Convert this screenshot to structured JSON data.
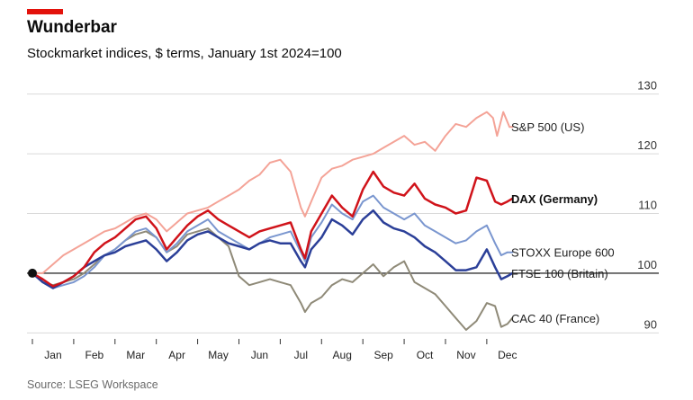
{
  "header": {
    "title": "Wunderbar",
    "subtitle": "Stockmarket indices, $ terms, January 1st 2024=100"
  },
  "footer": {
    "source": "Source: LSEG Workspace"
  },
  "colors": {
    "accent": "#e3120b",
    "grid": "#d9d9d9",
    "baseline": "#333333"
  },
  "chart_data": {
    "type": "line",
    "title": "Wunderbar",
    "subtitle": "Stockmarket indices, $ terms, January 1st 2024=100",
    "xlabel": "",
    "ylabel": "",
    "x_unit": "2024 month (1 = January 1st)",
    "xlim": [
      1,
      12.7
    ],
    "ylim": [
      89,
      131
    ],
    "yticks": [
      90,
      100,
      110,
      120,
      130
    ],
    "baseline": 100,
    "grid": true,
    "legend": "direct labels at right end of lines",
    "month_labels": [
      "Jan",
      "Feb",
      "Mar",
      "Apr",
      "May",
      "Jun",
      "Jul",
      "Aug",
      "Sep",
      "Oct",
      "Nov",
      "Dec"
    ],
    "series": [
      {
        "name": "S&P 500 (US)",
        "color": "#f4a397",
        "width": 2,
        "bold": false,
        "points": [
          [
            1.0,
            100
          ],
          [
            1.25,
            100
          ],
          [
            1.5,
            101.5
          ],
          [
            1.75,
            103
          ],
          [
            2.0,
            104
          ],
          [
            2.25,
            105
          ],
          [
            2.5,
            106
          ],
          [
            2.75,
            107
          ],
          [
            3.0,
            107.5
          ],
          [
            3.25,
            108.5
          ],
          [
            3.5,
            109.5
          ],
          [
            3.75,
            110
          ],
          [
            4.0,
            109
          ],
          [
            4.25,
            107
          ],
          [
            4.5,
            108.5
          ],
          [
            4.75,
            110
          ],
          [
            5.0,
            110.5
          ],
          [
            5.25,
            111
          ],
          [
            5.5,
            112
          ],
          [
            5.75,
            113
          ],
          [
            6.0,
            114
          ],
          [
            6.25,
            115.5
          ],
          [
            6.5,
            116.5
          ],
          [
            6.75,
            118.5
          ],
          [
            7.0,
            119
          ],
          [
            7.25,
            117
          ],
          [
            7.5,
            111
          ],
          [
            7.6,
            109.5
          ],
          [
            7.75,
            112
          ],
          [
            8.0,
            116
          ],
          [
            8.25,
            117.5
          ],
          [
            8.5,
            118
          ],
          [
            8.75,
            119
          ],
          [
            9.0,
            119.5
          ],
          [
            9.25,
            120
          ],
          [
            9.5,
            121
          ],
          [
            9.75,
            122
          ],
          [
            10.0,
            123
          ],
          [
            10.25,
            121.5
          ],
          [
            10.5,
            122
          ],
          [
            10.75,
            120.5
          ],
          [
            11.0,
            123
          ],
          [
            11.25,
            125
          ],
          [
            11.5,
            124.5
          ],
          [
            11.75,
            126
          ],
          [
            12.0,
            127
          ],
          [
            12.15,
            126
          ],
          [
            12.25,
            123
          ],
          [
            12.4,
            127
          ],
          [
            12.55,
            124.5
          ],
          [
            12.62,
            124.5
          ]
        ]
      },
      {
        "name": "DAX (Germany)",
        "color": "#d0131a",
        "width": 2.5,
        "bold": true,
        "points": [
          [
            1.0,
            100
          ],
          [
            1.25,
            99
          ],
          [
            1.5,
            97.8
          ],
          [
            1.75,
            98.5
          ],
          [
            2.0,
            99.5
          ],
          [
            2.25,
            101
          ],
          [
            2.5,
            103.5
          ],
          [
            2.75,
            105
          ],
          [
            3.0,
            106
          ],
          [
            3.25,
            107.5
          ],
          [
            3.5,
            109
          ],
          [
            3.75,
            109.5
          ],
          [
            4.0,
            107.5
          ],
          [
            4.25,
            104
          ],
          [
            4.5,
            106
          ],
          [
            4.75,
            108
          ],
          [
            5.0,
            109.5
          ],
          [
            5.25,
            110.5
          ],
          [
            5.5,
            109
          ],
          [
            5.75,
            108
          ],
          [
            6.0,
            107
          ],
          [
            6.25,
            106
          ],
          [
            6.5,
            107
          ],
          [
            6.75,
            107.5
          ],
          [
            7.0,
            108
          ],
          [
            7.25,
            108.5
          ],
          [
            7.5,
            104
          ],
          [
            7.6,
            102.5
          ],
          [
            7.75,
            107
          ],
          [
            8.0,
            110
          ],
          [
            8.25,
            113
          ],
          [
            8.5,
            111
          ],
          [
            8.75,
            109.5
          ],
          [
            9.0,
            114
          ],
          [
            9.25,
            117
          ],
          [
            9.5,
            114.5
          ],
          [
            9.75,
            113.5
          ],
          [
            10.0,
            113
          ],
          [
            10.25,
            115
          ],
          [
            10.5,
            112.5
          ],
          [
            10.75,
            111.5
          ],
          [
            11.0,
            111
          ],
          [
            11.25,
            110
          ],
          [
            11.5,
            110.5
          ],
          [
            11.75,
            116
          ],
          [
            12.0,
            115.5
          ],
          [
            12.2,
            112
          ],
          [
            12.35,
            111.5
          ],
          [
            12.5,
            112
          ],
          [
            12.62,
            112.5
          ]
        ]
      },
      {
        "name": "STOXX Europe 600",
        "color": "#7a96cf",
        "width": 2,
        "bold": false,
        "points": [
          [
            1.0,
            100
          ],
          [
            1.25,
            98.5
          ],
          [
            1.5,
            97.5
          ],
          [
            1.75,
            98
          ],
          [
            2.0,
            98.5
          ],
          [
            2.25,
            99.5
          ],
          [
            2.5,
            101
          ],
          [
            2.75,
            103
          ],
          [
            3.0,
            104
          ],
          [
            3.25,
            105.5
          ],
          [
            3.5,
            107
          ],
          [
            3.75,
            107.5
          ],
          [
            4.0,
            106
          ],
          [
            4.25,
            103.5
          ],
          [
            4.5,
            105
          ],
          [
            4.75,
            107
          ],
          [
            5.0,
            108
          ],
          [
            5.25,
            109
          ],
          [
            5.5,
            107
          ],
          [
            5.75,
            106
          ],
          [
            6.0,
            105
          ],
          [
            6.25,
            104
          ],
          [
            6.5,
            105
          ],
          [
            6.75,
            106
          ],
          [
            7.0,
            106.5
          ],
          [
            7.25,
            107
          ],
          [
            7.5,
            103.5
          ],
          [
            7.6,
            102
          ],
          [
            7.75,
            106
          ],
          [
            8.0,
            108.5
          ],
          [
            8.25,
            111.5
          ],
          [
            8.5,
            110
          ],
          [
            8.75,
            109
          ],
          [
            9.0,
            112
          ],
          [
            9.25,
            113
          ],
          [
            9.5,
            111
          ],
          [
            9.75,
            110
          ],
          [
            10.0,
            109
          ],
          [
            10.25,
            110
          ],
          [
            10.5,
            108
          ],
          [
            10.75,
            107
          ],
          [
            11.0,
            106
          ],
          [
            11.25,
            105
          ],
          [
            11.5,
            105.5
          ],
          [
            11.75,
            107
          ],
          [
            12.0,
            108
          ],
          [
            12.2,
            105
          ],
          [
            12.35,
            103
          ],
          [
            12.5,
            103.5
          ],
          [
            12.62,
            103.5
          ]
        ]
      },
      {
        "name": "FTSE 100 (Britain)",
        "color": "#2b3f98",
        "width": 2.5,
        "bold": false,
        "points": [
          [
            1.0,
            100
          ],
          [
            1.25,
            98.5
          ],
          [
            1.5,
            97.5
          ],
          [
            1.75,
            98.5
          ],
          [
            2.0,
            99.5
          ],
          [
            2.25,
            101
          ],
          [
            2.5,
            102
          ],
          [
            2.75,
            103
          ],
          [
            3.0,
            103.5
          ],
          [
            3.25,
            104.5
          ],
          [
            3.5,
            105
          ],
          [
            3.75,
            105.5
          ],
          [
            4.0,
            104
          ],
          [
            4.25,
            102
          ],
          [
            4.5,
            103.5
          ],
          [
            4.75,
            105.5
          ],
          [
            5.0,
            106.5
          ],
          [
            5.25,
            107
          ],
          [
            5.5,
            106
          ],
          [
            5.75,
            105
          ],
          [
            6.0,
            104.5
          ],
          [
            6.25,
            104
          ],
          [
            6.5,
            105
          ],
          [
            6.75,
            105.5
          ],
          [
            7.0,
            105
          ],
          [
            7.25,
            105
          ],
          [
            7.5,
            102
          ],
          [
            7.6,
            101
          ],
          [
            7.75,
            104
          ],
          [
            8.0,
            106
          ],
          [
            8.25,
            109
          ],
          [
            8.5,
            108
          ],
          [
            8.75,
            106.5
          ],
          [
            9.0,
            109
          ],
          [
            9.25,
            110.5
          ],
          [
            9.5,
            108.5
          ],
          [
            9.75,
            107.5
          ],
          [
            10.0,
            107
          ],
          [
            10.25,
            106
          ],
          [
            10.5,
            104.5
          ],
          [
            10.75,
            103.5
          ],
          [
            11.0,
            102
          ],
          [
            11.25,
            100.5
          ],
          [
            11.5,
            100.5
          ],
          [
            11.75,
            101
          ],
          [
            12.0,
            104
          ],
          [
            12.2,
            101
          ],
          [
            12.35,
            99
          ],
          [
            12.5,
            99.5
          ],
          [
            12.62,
            100
          ]
        ]
      },
      {
        "name": "CAC 40 (France)",
        "color": "#8f8a78",
        "width": 2,
        "bold": false,
        "points": [
          [
            1.0,
            100
          ],
          [
            1.25,
            98.5
          ],
          [
            1.5,
            98
          ],
          [
            1.75,
            98.5
          ],
          [
            2.0,
            99
          ],
          [
            2.25,
            100
          ],
          [
            2.5,
            101.5
          ],
          [
            2.75,
            103
          ],
          [
            3.0,
            104
          ],
          [
            3.25,
            105.5
          ],
          [
            3.5,
            106.5
          ],
          [
            3.75,
            107
          ],
          [
            4.0,
            106
          ],
          [
            4.25,
            103.5
          ],
          [
            4.5,
            104.5
          ],
          [
            4.75,
            106.5
          ],
          [
            5.0,
            107
          ],
          [
            5.25,
            107.5
          ],
          [
            5.5,
            106
          ],
          [
            5.75,
            104.5
          ],
          [
            6.0,
            99.5
          ],
          [
            6.25,
            98
          ],
          [
            6.5,
            98.5
          ],
          [
            6.75,
            99
          ],
          [
            7.0,
            98.5
          ],
          [
            7.25,
            98
          ],
          [
            7.5,
            95
          ],
          [
            7.6,
            93.5
          ],
          [
            7.75,
            95
          ],
          [
            8.0,
            96
          ],
          [
            8.25,
            98
          ],
          [
            8.5,
            99
          ],
          [
            8.75,
            98.5
          ],
          [
            9.0,
            100
          ],
          [
            9.25,
            101.5
          ],
          [
            9.5,
            99.5
          ],
          [
            9.75,
            101
          ],
          [
            10.0,
            102
          ],
          [
            10.25,
            98.5
          ],
          [
            10.5,
            97.5
          ],
          [
            10.75,
            96.5
          ],
          [
            11.0,
            94.5
          ],
          [
            11.25,
            92.5
          ],
          [
            11.5,
            90.5
          ],
          [
            11.75,
            92
          ],
          [
            12.0,
            95
          ],
          [
            12.2,
            94.5
          ],
          [
            12.35,
            91
          ],
          [
            12.5,
            91.5
          ],
          [
            12.62,
            92.5
          ]
        ]
      }
    ]
  }
}
